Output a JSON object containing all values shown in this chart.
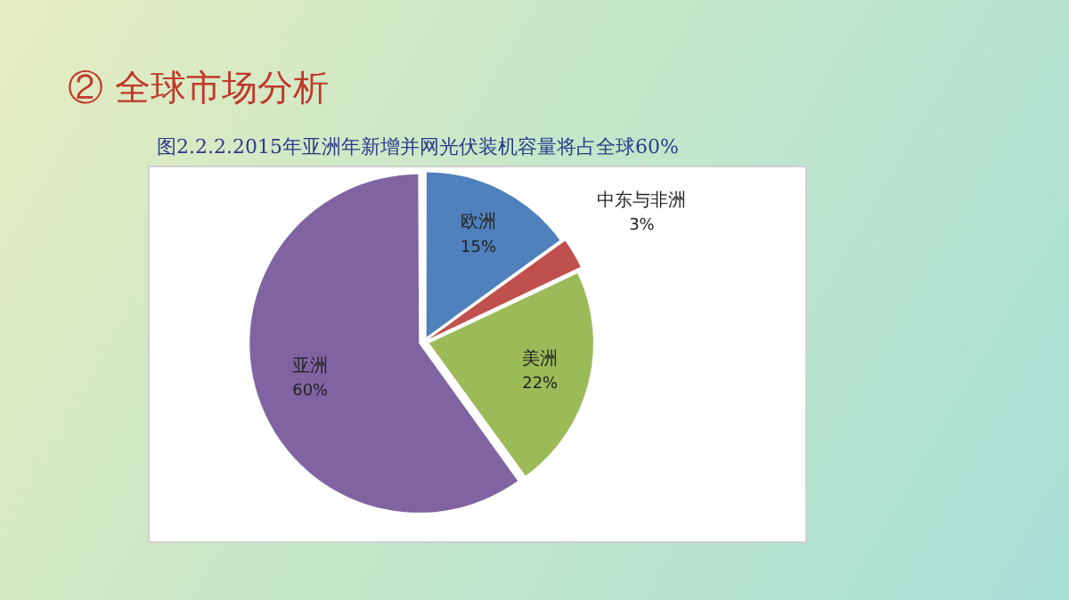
{
  "chart_data": {
    "type": "pie",
    "title": "② 全球市场分析",
    "subtitle": "图2.2.2.2015年亚洲年新增并网光伏装机容量将占全球60%",
    "categories": [
      "欧洲",
      "中东与非洲",
      "美洲",
      "亚洲"
    ],
    "values": [
      15,
      3,
      22,
      60
    ],
    "value_labels": [
      "15%",
      "3%",
      "22%",
      "60%"
    ],
    "colors": [
      "#4f81bd",
      "#c0504d",
      "#9bbb59",
      "#8064a2"
    ],
    "legend": false
  }
}
